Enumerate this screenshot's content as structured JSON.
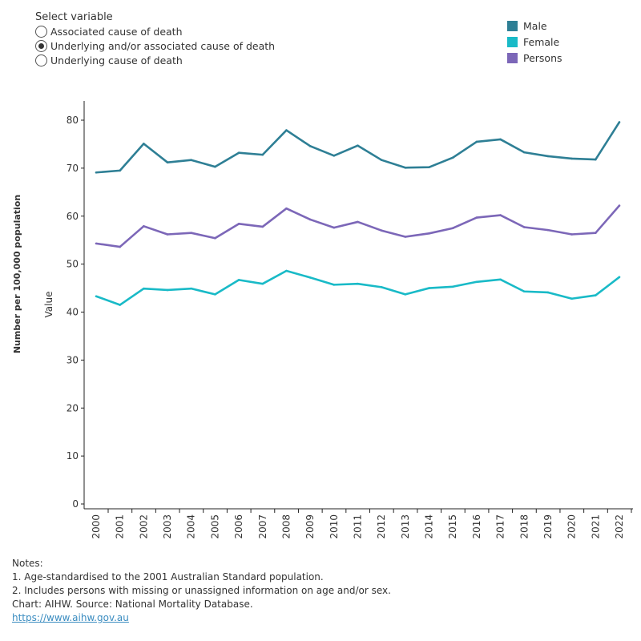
{
  "control": {
    "title": "Select variable",
    "options": [
      "Associated cause of death",
      "Underlying and/or associated cause of death",
      "Underlying cause of death"
    ],
    "selected": 1
  },
  "legend": [
    {
      "label": "Male",
      "color": "#2e7f95"
    },
    {
      "label": "Female",
      "color": "#19bac7"
    },
    {
      "label": "Persons",
      "color": "#7c67b8"
    }
  ],
  "chart_data": {
    "type": "line",
    "ylabel": "Number per 100,000 population",
    "ylabel_inner": "Value",
    "ylim": [
      0,
      80
    ],
    "yticks": [
      0,
      10,
      20,
      30,
      40,
      50,
      60,
      70,
      80
    ],
    "grid": false,
    "legend_position": "top-right",
    "x": [
      "2000",
      "2001",
      "2002",
      "2003",
      "2004",
      "2005",
      "2006",
      "2007",
      "2008",
      "2009",
      "2010",
      "2011",
      "2012",
      "2013",
      "2014",
      "2015",
      "2016",
      "2017",
      "2018",
      "2019",
      "2020",
      "2021",
      "2022"
    ],
    "series": [
      {
        "name": "Male",
        "color": "#2e7f95",
        "values": [
          69.1,
          69.5,
          75.1,
          71.2,
          71.7,
          70.3,
          73.2,
          72.8,
          77.9,
          74.6,
          72.6,
          74.7,
          71.7,
          70.1,
          70.2,
          72.2,
          75.5,
          76.0,
          73.3,
          72.5,
          72.0,
          71.8,
          79.6
        ]
      },
      {
        "name": "Female",
        "color": "#19bac7",
        "values": [
          43.3,
          41.5,
          44.9,
          44.6,
          44.9,
          43.7,
          46.7,
          45.9,
          48.6,
          47.2,
          45.7,
          45.9,
          45.2,
          43.7,
          45.0,
          45.3,
          46.3,
          46.8,
          44.3,
          44.1,
          42.8,
          43.5,
          47.3
        ]
      },
      {
        "name": "Persons",
        "color": "#7c67b8",
        "values": [
          54.3,
          53.6,
          57.9,
          56.2,
          56.5,
          55.4,
          58.4,
          57.8,
          61.6,
          59.3,
          57.6,
          58.8,
          57.0,
          55.7,
          56.4,
          57.5,
          59.7,
          60.2,
          57.7,
          57.1,
          56.2,
          56.5,
          62.2
        ]
      }
    ]
  },
  "notes": {
    "heading": "Notes:",
    "lines": [
      "1. Age-standardised to the 2001 Australian Standard population.",
      "2. Includes persons with missing or unassigned information on age and/or sex.",
      "Chart: AIHW.  Source: National Mortality Database."
    ],
    "link": "https://www.aihw.gov.au"
  }
}
